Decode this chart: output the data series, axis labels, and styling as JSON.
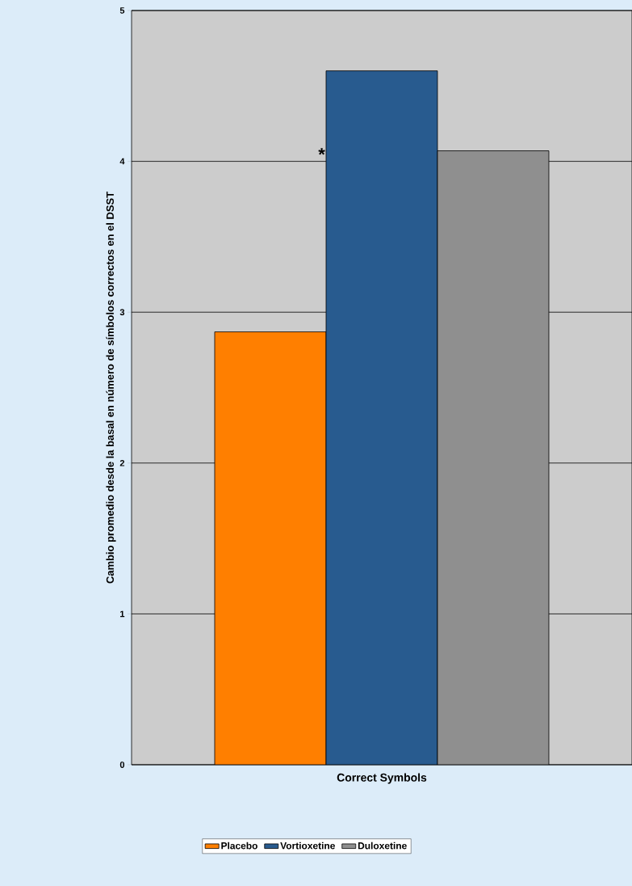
{
  "chart_data": {
    "type": "bar",
    "ylabel": "Cambio promedio desde la basal en número de símbolos correctos en el DSST",
    "categories": [
      "Correct Symbols"
    ],
    "series": [
      {
        "name": "Placebo",
        "color": "#ff7f00",
        "values": [
          2.87
        ]
      },
      {
        "name": "Vortioxetine",
        "color": "#285b8f",
        "values": [
          4.6
        ]
      },
      {
        "name": "Duloxetine",
        "color": "#8f8f8f",
        "values": [
          4.07
        ]
      }
    ],
    "ylim": [
      0,
      5
    ],
    "yticks": [
      0,
      1,
      2,
      3,
      4,
      5
    ],
    "grid": "y",
    "legend": "bottom",
    "annotations": [
      "*"
    ]
  }
}
